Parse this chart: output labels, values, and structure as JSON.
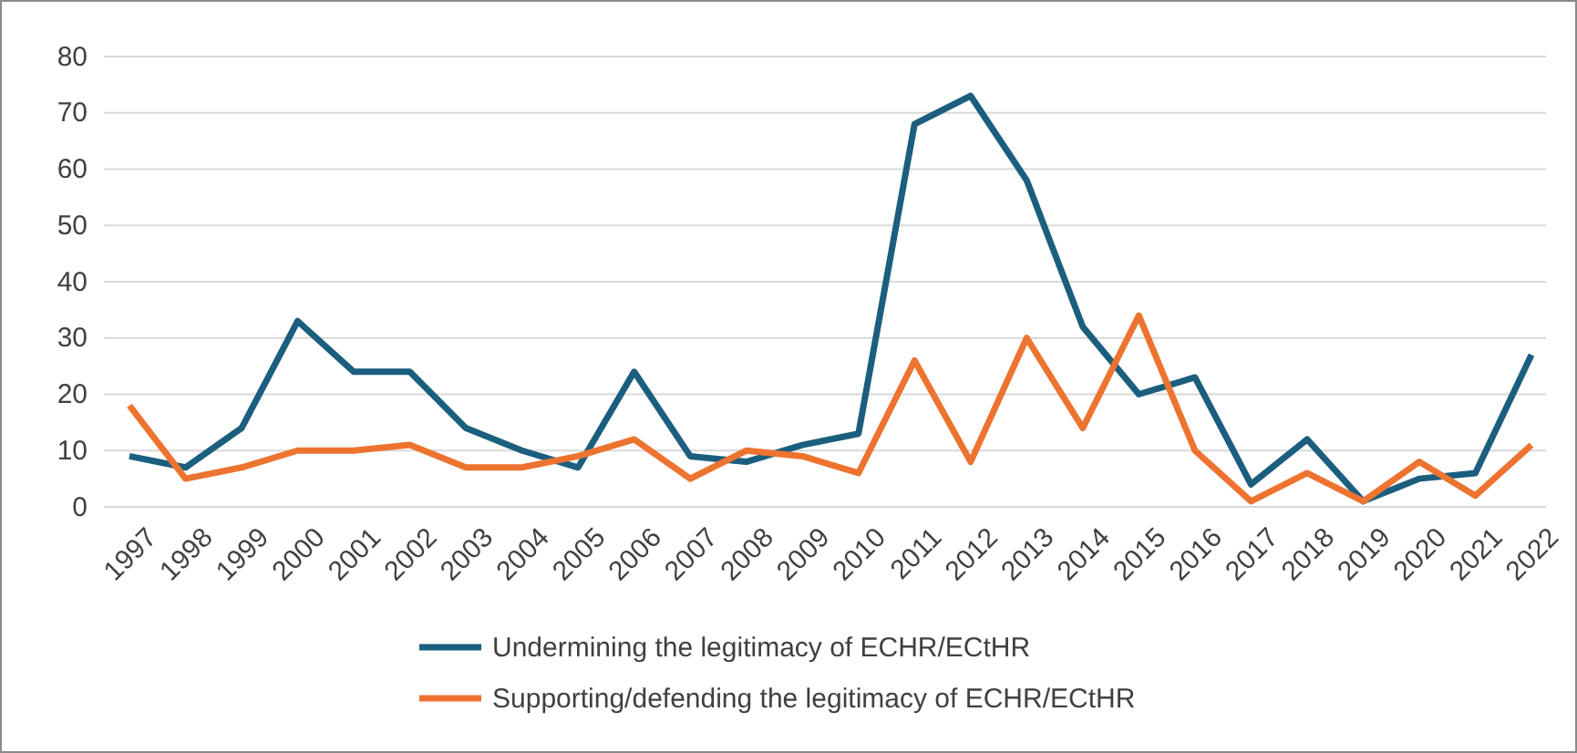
{
  "chart_data": {
    "type": "line",
    "categories": [
      "1997",
      "1998",
      "1999",
      "2000",
      "2001",
      "2002",
      "2003",
      "2004",
      "2005",
      "2006",
      "2007",
      "2008",
      "2009",
      "2010",
      "2011",
      "2012",
      "2013",
      "2014",
      "2015",
      "2016",
      "2017",
      "2018",
      "2019",
      "2020",
      "2021",
      "2022"
    ],
    "series": [
      {
        "name": "Undermining the legitimacy of ECHR/ECtHR",
        "color": "#1b5e7e",
        "values": [
          9,
          7,
          14,
          33,
          24,
          24,
          14,
          10,
          7,
          24,
          9,
          8,
          11,
          13,
          68,
          73,
          58,
          32,
          20,
          23,
          4,
          12,
          1,
          5,
          6,
          27
        ]
      },
      {
        "name": "Supporting/defending the legitimacy of ECHR/ECtHR",
        "color": "#ed7430",
        "values": [
          18,
          5,
          7,
          10,
          10,
          11,
          7,
          7,
          9,
          12,
          5,
          10,
          9,
          6,
          26,
          8,
          30,
          14,
          34,
          10,
          1,
          6,
          1,
          8,
          2,
          11
        ]
      }
    ],
    "ylim": [
      0,
      80
    ],
    "yticks": [
      0,
      10,
      20,
      30,
      40,
      50,
      60,
      70,
      80
    ],
    "grid": "y",
    "legend": "bottom",
    "marker": "none",
    "line_style": "solid"
  }
}
